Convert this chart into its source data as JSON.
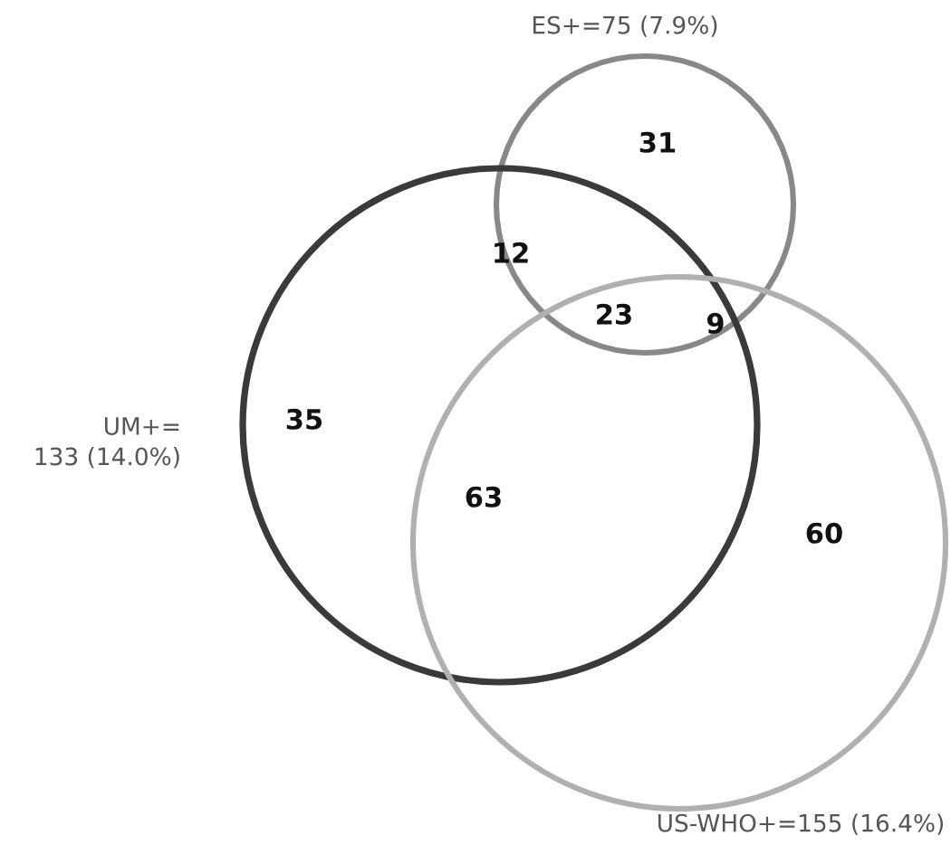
{
  "chart_data": {
    "type": "other",
    "categories": [
      null,
      null,
      null,
      null,
      null,
      null,
      null
    ],
    "values": [
      31,
      12,
      23,
      9,
      35,
      63,
      60
    ],
    "data_labels": true,
    "annotations": [
      "ES+=75 (7.9%)",
      "UM+=\n133 (14.0%)",
      "US-WHO+=155 (16.4%)"
    ]
  }
}
